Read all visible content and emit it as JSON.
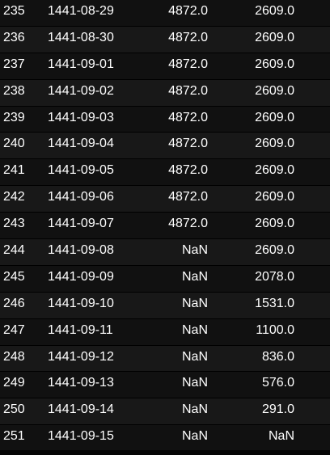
{
  "table": {
    "rows": [
      {
        "index": "235",
        "date": "1441-08-29",
        "a": "4872.0",
        "b": "2609.0"
      },
      {
        "index": "236",
        "date": "1441-08-30",
        "a": "4872.0",
        "b": "2609.0"
      },
      {
        "index": "237",
        "date": "1441-09-01",
        "a": "4872.0",
        "b": "2609.0"
      },
      {
        "index": "238",
        "date": "1441-09-02",
        "a": "4872.0",
        "b": "2609.0"
      },
      {
        "index": "239",
        "date": "1441-09-03",
        "a": "4872.0",
        "b": "2609.0"
      },
      {
        "index": "240",
        "date": "1441-09-04",
        "a": "4872.0",
        "b": "2609.0"
      },
      {
        "index": "241",
        "date": "1441-09-05",
        "a": "4872.0",
        "b": "2609.0"
      },
      {
        "index": "242",
        "date": "1441-09-06",
        "a": "4872.0",
        "b": "2609.0"
      },
      {
        "index": "243",
        "date": "1441-09-07",
        "a": "4872.0",
        "b": "2609.0"
      },
      {
        "index": "244",
        "date": "1441-09-08",
        "a": "NaN",
        "b": "2609.0"
      },
      {
        "index": "245",
        "date": "1441-09-09",
        "a": "NaN",
        "b": "2078.0"
      },
      {
        "index": "246",
        "date": "1441-09-10",
        "a": "NaN",
        "b": "1531.0"
      },
      {
        "index": "247",
        "date": "1441-09-11",
        "a": "NaN",
        "b": "1100.0"
      },
      {
        "index": "248",
        "date": "1441-09-12",
        "a": "NaN",
        "b": "836.0"
      },
      {
        "index": "249",
        "date": "1441-09-13",
        "a": "NaN",
        "b": "576.0"
      },
      {
        "index": "250",
        "date": "1441-09-14",
        "a": "NaN",
        "b": "291.0"
      },
      {
        "index": "251",
        "date": "1441-09-15",
        "a": "NaN",
        "b": "NaN"
      }
    ]
  }
}
